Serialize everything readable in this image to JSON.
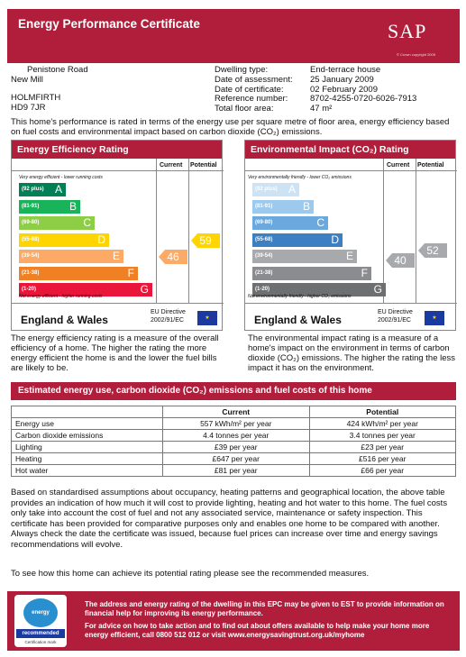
{
  "header": {
    "title": "Energy Performance Certificate",
    "logo": "SAP",
    "logo_small": "© Crown copyright 2005"
  },
  "address": {
    "line1": "Penistone Road",
    "line2": "New Mill",
    "line3": "HOLMFIRTH",
    "line4": "HD9 7JR"
  },
  "dwelling": {
    "type_label": "Dwelling type:",
    "type": "End-terrace house",
    "assess_label": "Date of assessment:",
    "assess": "25 January 2009",
    "cert_label": "Date of certificate:",
    "cert": "02 February 2009",
    "ref_label": "Reference number:",
    "ref": "8702-4255-0720-6026-7913",
    "area_label": "Total floor area:",
    "area": "47 m²"
  },
  "intro": "This home's performance is rated in terms of the energy use per square metre of floor area, energy efficiency based on fuel costs and environmental impact based on carbon dioxide (CO₂) emissions.",
  "energy_panel": {
    "title": "Energy Efficiency Rating",
    "current_label": "Current",
    "potential_label": "Potential",
    "top_note": "Very energy efficient - lower running costs",
    "bottom_note": "Not energy efficient - higher running costs",
    "bands": [
      {
        "range": "(92 plus)",
        "letter": "A",
        "color": "#008054"
      },
      {
        "range": "(81-91)",
        "letter": "B",
        "color": "#19b459"
      },
      {
        "range": "(69-80)",
        "letter": "C",
        "color": "#8dce46"
      },
      {
        "range": "(55-68)",
        "letter": "D",
        "color": "#ffd500"
      },
      {
        "range": "(39-54)",
        "letter": "E",
        "color": "#fcaa65"
      },
      {
        "range": "(21-38)",
        "letter": "F",
        "color": "#ef8023"
      },
      {
        "range": "(1-20)",
        "letter": "G",
        "color": "#e9153b"
      }
    ],
    "current": "46",
    "potential": "59",
    "current_color": "#fcaa65",
    "potential_color": "#ffd500",
    "region": "England & Wales",
    "eu": "EU Directive",
    "eu2": "2002/91/EC",
    "description": "The energy efficiency rating is a measure of the overall efficiency of a home. The higher the rating the more energy efficient the home is and the lower the fuel bills are likely to be."
  },
  "env_panel": {
    "title": "Environmental Impact (CO₂) Rating",
    "current_label": "Current",
    "potential_label": "Potential",
    "top_note": "Very environmentally friendly - lower CO₂ emissions",
    "bottom_note": "Not environmentally friendly - higher CO₂ emissions",
    "bands": [
      {
        "range": "(92 plus)",
        "letter": "A",
        "color": "#cde3f4"
      },
      {
        "range": "(81-91)",
        "letter": "B",
        "color": "#9cc9ec"
      },
      {
        "range": "(69-80)",
        "letter": "C",
        "color": "#6ba8dd"
      },
      {
        "range": "(55-68)",
        "letter": "D",
        "color": "#3c7fc2"
      },
      {
        "range": "(39-54)",
        "letter": "E",
        "color": "#a7a9ac"
      },
      {
        "range": "(21-38)",
        "letter": "F",
        "color": "#8a8c8f"
      },
      {
        "range": "(1-20)",
        "letter": "G",
        "color": "#6d6f71"
      }
    ],
    "current": "40",
    "potential": "52",
    "current_color": "#a7a9ac",
    "potential_color": "#a7a9ac",
    "region": "England & Wales",
    "eu": "EU Directive",
    "eu2": "2002/91/EC",
    "description": "The environmental impact rating is a measure of a home's impact on the environment in terms of carbon dioxide (CO₂) emissions. The higher the rating the less impact it has on the environment."
  },
  "costs": {
    "title": "Estimated energy use, carbon dioxide (CO₂) emissions and fuel costs of this home",
    "headers": [
      "",
      "Current",
      "Potential"
    ],
    "rows": [
      [
        "Energy use",
        "557 kWh/m² per year",
        "424 kWh/m² per year"
      ],
      [
        "Carbon dioxide emissions",
        "4.4 tonnes per year",
        "3.4 tonnes per year"
      ],
      [
        "Lighting",
        "£39 per year",
        "£23 per year"
      ],
      [
        "Heating",
        "£647 per year",
        "£516 per year"
      ],
      [
        "Hot water",
        "£81 per year",
        "£66 per year"
      ]
    ]
  },
  "paragraph": "Based on standardised assumptions about occupancy, heating patterns and geographical location, the above table provides an indication of how much it will cost to provide lighting, heating and hot water to this home. The fuel costs only take into account the cost of fuel and not any associated service, maintenance or safety inspection. This certificate has been provided for comparative purposes only and enables one home to be compared with another. Always check the date the certificate was issued, because fuel prices can increase over time and energy savings recommendations will evolve.",
  "recommend": "To see how this home can achieve its potential rating please see the recommended measures.",
  "footer": {
    "logo_text1": "energy saving",
    "logo_text2": "recommended",
    "logo_text3": "Certification mark",
    "text1": "The address and energy rating of the dwelling in this EPC may be given to EST to provide information on financial help for improving its energy performance.",
    "text2": "For advice on how to take action and to find out about offers available to help make your home more energy efficient, call 0800 512 012 or visit www.energysavingtrust.org.uk/myhome"
  }
}
